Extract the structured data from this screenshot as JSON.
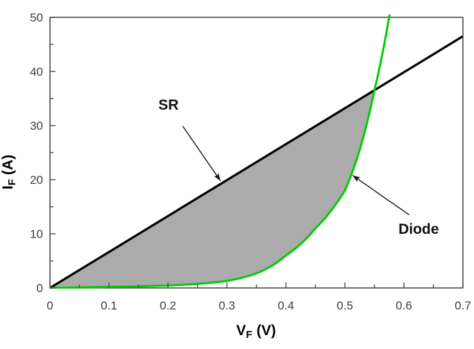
{
  "chart_data": {
    "type": "line",
    "title": "",
    "xlabel": {
      "base": "V",
      "sub": "F",
      "rest": "(V)"
    },
    "ylabel": {
      "base": "I",
      "sub": "F",
      "rest": "(A)"
    },
    "xlim": [
      0,
      0.7
    ],
    "ylim": [
      0,
      50
    ],
    "grid": false,
    "legend": "none",
    "x_ticks": {
      "values": [
        0,
        0.1,
        0.2,
        0.3,
        0.4,
        0.5,
        0.6,
        0.7
      ],
      "labels": [
        "0",
        "0.1",
        "0.2",
        "0.3",
        "0.4",
        "0.5",
        "0.6",
        "0.7"
      ],
      "minor_step": 0.05
    },
    "y_ticks": {
      "values": [
        0,
        10,
        20,
        30,
        40,
        50
      ],
      "labels": [
        "0",
        "10",
        "20",
        "30",
        "40",
        "50"
      ],
      "minor_step": 5
    },
    "series": [
      {
        "name": "SR",
        "curve": "straight-line",
        "color": "#000000",
        "points_v_i": [
          [
            0,
            0
          ],
          [
            0.7,
            46.5
          ]
        ]
      },
      {
        "name": "Diode",
        "curve": "exponential",
        "color": "#00cc00",
        "points_v_i": [
          [
            0,
            0
          ],
          [
            0.05,
            0.1
          ],
          [
            0.1,
            0.2
          ],
          [
            0.15,
            0.3
          ],
          [
            0.2,
            0.45
          ],
          [
            0.25,
            0.75
          ],
          [
            0.3,
            1.3
          ],
          [
            0.35,
            2.7
          ],
          [
            0.4,
            6.0
          ],
          [
            0.45,
            11.0
          ],
          [
            0.5,
            18.0
          ],
          [
            0.525,
            25.5
          ],
          [
            0.55,
            36.5
          ],
          [
            0.578,
            52.0
          ]
        ]
      }
    ],
    "intersection_v_i": [
      0.551,
      36.6
    ],
    "shaded_region": {
      "between": [
        "SR",
        "Diode"
      ],
      "x_range": [
        0,
        0.551
      ],
      "color": "#ababab"
    },
    "annotations": [
      {
        "label": "SR",
        "text_at_v_i": [
          0.201,
          34.0
        ],
        "arrow_from_v_i": [
          0.225,
          29.9
        ],
        "arrow_to_v_i": [
          0.289,
          19.8
        ]
      },
      {
        "label": "Diode",
        "text_at_v_i": [
          0.625,
          11.0
        ],
        "arrow_from_v_i": [
          0.609,
          13.5
        ],
        "arrow_to_v_i": [
          0.513,
          20.8
        ]
      }
    ],
    "colors": {
      "frame": "#4a4a4a",
      "tick": "#4a4a4a",
      "tick_label": "#3c3c3c",
      "axis_title": "#000000",
      "annotation": "#111111",
      "background": "#ffffff"
    }
  }
}
